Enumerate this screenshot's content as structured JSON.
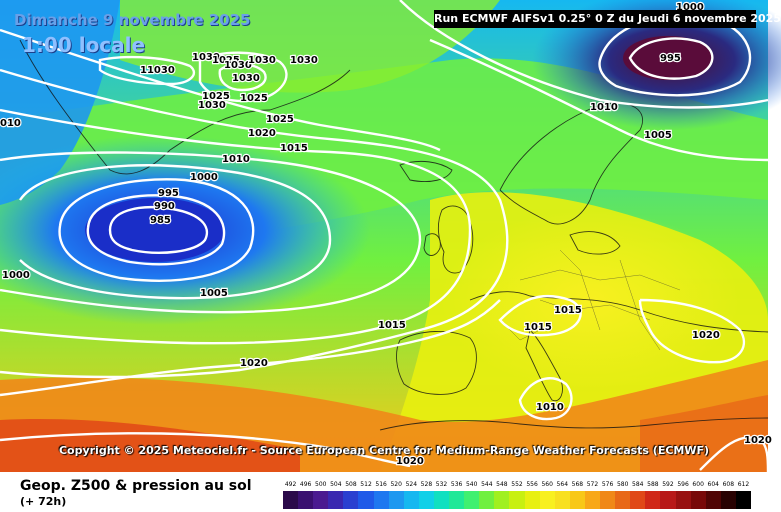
{
  "header": {
    "date_title": "Dimanche 9 novembre 2025",
    "time_title": "1:00 locale",
    "run_info": "Run ECMWF AIFSv1 0.25° 0 Z du Jeudi 6 novembre 2025"
  },
  "copyright": "Copyright © 2025 Meteociel.fr - Source European Centre for Medium-Range Weather Forecasts (ECMWF)",
  "legend": {
    "title": "Geop. Z500 & pression au sol",
    "subtitle": "(+ 72h)",
    "scale_values": [
      "492",
      "496",
      "500",
      "504",
      "508",
      "512",
      "516",
      "520",
      "524",
      "528",
      "532",
      "536",
      "540",
      "544",
      "548",
      "552",
      "556",
      "560",
      "564",
      "568",
      "572",
      "576",
      "580",
      "584",
      "588",
      "592",
      "596",
      "600",
      "604",
      "608",
      "612"
    ],
    "scale_colors": [
      "#2b0a4a",
      "#3a1070",
      "#4a1a90",
      "#3a28b0",
      "#2a40d0",
      "#1f5ae8",
      "#1e78f0",
      "#1e98f0",
      "#16b8f0",
      "#10d0e8",
      "#10e0c0",
      "#20e898",
      "#40f070",
      "#70f040",
      "#a0f020",
      "#c8f010",
      "#e8f010",
      "#f8f020",
      "#f8e020",
      "#f8c818",
      "#f8a818",
      "#f08818",
      "#e86818",
      "#e04818",
      "#d02818",
      "#b81818",
      "#981010",
      "#780808",
      "#500404",
      "#280202",
      "#000000"
    ]
  },
  "isobar_labels": [
    "1030",
    "1025",
    "1030",
    "1030",
    "1030",
    "11030",
    "1030",
    "1025",
    "1025",
    "1030",
    "1025",
    "1020",
    "1015",
    "1010",
    "1000",
    "995",
    "990",
    "985",
    "1005",
    "1000",
    "1015",
    "1020",
    "1010",
    "1005",
    "995",
    "1000",
    "1015",
    "1015",
    "1020",
    "1010",
    "1020",
    "010",
    "1020"
  ],
  "colors": {
    "ocean_low": "#1e5ae8",
    "accent_yellow": "#f8f020",
    "isobar": "#ffffff"
  }
}
